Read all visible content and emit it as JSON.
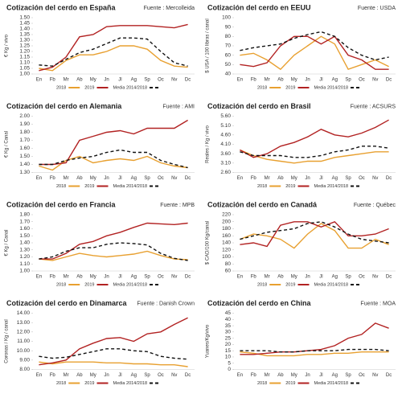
{
  "chart_data": [
    {
      "type": "line",
      "title": "Cotización del cerdo en España",
      "source": "Fuente : Mercolleida",
      "ylabel": "€ Kg / vivo",
      "categories": [
        "En",
        "Fb",
        "Mr",
        "Ab",
        "My",
        "Jn",
        "Jl",
        "Ag",
        "Sp",
        "Oc",
        "Nv",
        "Dc"
      ],
      "ylim": [
        1.0,
        1.5
      ],
      "yticks": [
        {
          "value": 1.0,
          "label": "1.00"
        },
        {
          "value": 1.05,
          "label": "1.05"
        },
        {
          "value": 1.1,
          "label": "1.10"
        },
        {
          "value": 1.15,
          "label": "1.15"
        },
        {
          "value": 1.2,
          "label": "1.20"
        },
        {
          "value": 1.25,
          "label": "1.25"
        },
        {
          "value": 1.3,
          "label": "1.30"
        },
        {
          "value": 1.35,
          "label": "1.35"
        },
        {
          "value": 1.4,
          "label": "1.40"
        },
        {
          "value": 1.45,
          "label": "1.45"
        },
        {
          "value": 1.5,
          "label": "1.50"
        }
      ],
      "series": [
        {
          "name": "2018",
          "color": "#e8a030",
          "values": [
            1.05,
            1.03,
            1.12,
            1.17,
            1.17,
            1.2,
            1.25,
            1.25,
            1.22,
            1.12,
            1.07,
            1.06
          ]
        },
        {
          "name": "2019",
          "color": "#b22222",
          "values": [
            1.03,
            1.06,
            1.15,
            1.33,
            1.35,
            1.42,
            1.43,
            1.43,
            1.43,
            1.42,
            1.41,
            1.44
          ]
        },
        {
          "name": "Media 2014/2018",
          "color": "#111111",
          "dashed": true,
          "values": [
            1.08,
            1.07,
            1.13,
            1.19,
            1.22,
            1.27,
            1.32,
            1.32,
            1.31,
            1.2,
            1.1,
            1.07
          ]
        }
      ]
    },
    {
      "type": "line",
      "title": "Cotización del cerdo en EEUU",
      "source": "Fuente : USDA",
      "ylabel": "$ USA / 100 libras / canal",
      "categories": [
        "En",
        "Fb",
        "Mr",
        "Ab",
        "My",
        "Jn",
        "Jl",
        "Ag",
        "Sp",
        "Oc",
        "Nv",
        "Dc"
      ],
      "ylim": [
        40,
        100
      ],
      "yticks": [
        40,
        50,
        60,
        70,
        80,
        90,
        100
      ],
      "series": [
        {
          "name": "2018",
          "color": "#e8a030",
          "values": [
            60,
            62,
            55,
            45,
            60,
            70,
            80,
            72,
            45,
            50,
            55,
            48
          ]
        },
        {
          "name": "2019",
          "color": "#b22222",
          "values": [
            50,
            48,
            52,
            70,
            80,
            80,
            72,
            80,
            60,
            55,
            45,
            45
          ]
        },
        {
          "name": "Media 2014/2018",
          "color": "#111111",
          "dashed": true,
          "values": [
            65,
            68,
            70,
            72,
            78,
            82,
            85,
            80,
            68,
            60,
            55,
            58
          ]
        }
      ]
    },
    {
      "type": "line",
      "title": "Cotización del cerdo en Alemania",
      "source": "Fuente : AMI",
      "ylabel": "€ Kg / Canal",
      "categories": [
        "En",
        "Fb",
        "Mr",
        "Ab",
        "My",
        "Jn",
        "Jl",
        "Ag",
        "Sp",
        "Oc",
        "Nv",
        "Dc"
      ],
      "ylim": [
        1.3,
        2.0
      ],
      "yticks": [
        {
          "value": 1.3,
          "label": "1.30"
        },
        {
          "value": 1.4,
          "label": "1.40"
        },
        {
          "value": 1.5,
          "label": "1.50"
        },
        {
          "value": 1.6,
          "label": "1.60"
        },
        {
          "value": 1.7,
          "label": "1.70"
        },
        {
          "value": 1.8,
          "label": "1.80"
        },
        {
          "value": 1.9,
          "label": "1.90"
        },
        {
          "value": 2.0,
          "label": "2.00"
        }
      ],
      "series": [
        {
          "name": "2018",
          "color": "#e8a030",
          "values": [
            1.38,
            1.33,
            1.45,
            1.5,
            1.42,
            1.45,
            1.47,
            1.45,
            1.5,
            1.42,
            1.38,
            1.36
          ]
        },
        {
          "name": "2019",
          "color": "#b22222",
          "values": [
            1.4,
            1.4,
            1.42,
            1.7,
            1.75,
            1.8,
            1.82,
            1.78,
            1.85,
            1.85,
            1.85,
            1.95
          ]
        },
        {
          "name": "Media 2014/2018",
          "color": "#111111",
          "dashed": true,
          "values": [
            1.4,
            1.4,
            1.45,
            1.48,
            1.5,
            1.55,
            1.58,
            1.55,
            1.55,
            1.45,
            1.4,
            1.36
          ]
        }
      ]
    },
    {
      "type": "line",
      "title": "Cotización del cerdo en Brasil",
      "source": "Fuente : ACSURS",
      "ylabel": "Reales / Kg / vivo",
      "categories": [
        "En",
        "Fb",
        "Mr",
        "Ab",
        "My",
        "Jn",
        "Jl",
        "Ag",
        "Sp",
        "Oc",
        "Nv",
        "Dc"
      ],
      "ylim": [
        2.6,
        5.6
      ],
      "yticks": [
        {
          "value": 2.6,
          "label": "2.60"
        },
        {
          "value": 3.1,
          "label": "3.10"
        },
        {
          "value": 3.6,
          "label": "3.60"
        },
        {
          "value": 4.1,
          "label": "4.10"
        },
        {
          "value": 4.6,
          "label": "4.60"
        },
        {
          "value": 5.1,
          "label": "5.10"
        },
        {
          "value": 5.6,
          "label": "5.60"
        }
      ],
      "series": [
        {
          "name": "2018",
          "color": "#e8a030",
          "values": [
            3.8,
            3.5,
            3.3,
            3.2,
            3.1,
            3.2,
            3.2,
            3.4,
            3.5,
            3.6,
            3.7,
            3.7
          ]
        },
        {
          "name": "2019",
          "color": "#b22222",
          "values": [
            3.8,
            3.4,
            3.6,
            4.0,
            4.2,
            4.5,
            4.9,
            4.6,
            4.5,
            4.7,
            5.0,
            5.4
          ]
        },
        {
          "name": "Media 2014/2018",
          "color": "#111111",
          "dashed": true,
          "values": [
            3.7,
            3.5,
            3.5,
            3.5,
            3.4,
            3.4,
            3.5,
            3.7,
            3.8,
            4.0,
            4.0,
            3.9
          ]
        }
      ]
    },
    {
      "type": "line",
      "title": "Cotización del cerdo en Francia",
      "source": "Fuente : MPB",
      "ylabel": "€ Kg / Canal",
      "categories": [
        "En",
        "Fb",
        "Mr",
        "Ab",
        "My",
        "Jn",
        "Jl",
        "Ag",
        "Sp",
        "Oc",
        "Nv",
        "Dc"
      ],
      "ylim": [
        1.0,
        1.8
      ],
      "yticks": [
        {
          "value": 1.0,
          "label": "1.00"
        },
        {
          "value": 1.1,
          "label": "1.10"
        },
        {
          "value": 1.2,
          "label": "1.20"
        },
        {
          "value": 1.3,
          "label": "1.30"
        },
        {
          "value": 1.4,
          "label": "1.40"
        },
        {
          "value": 1.5,
          "label": "1.50"
        },
        {
          "value": 1.6,
          "label": "1.60"
        },
        {
          "value": 1.7,
          "label": "1.70"
        },
        {
          "value": 1.8,
          "label": "1.80"
        }
      ],
      "series": [
        {
          "name": "2018",
          "color": "#e8a030",
          "values": [
            1.17,
            1.15,
            1.2,
            1.25,
            1.22,
            1.2,
            1.22,
            1.24,
            1.28,
            1.22,
            1.17,
            1.16
          ]
        },
        {
          "name": "2019",
          "color": "#b22222",
          "values": [
            1.17,
            1.17,
            1.25,
            1.38,
            1.42,
            1.5,
            1.55,
            1.62,
            1.68,
            1.67,
            1.66,
            1.68
          ]
        },
        {
          "name": "Media 2014/2018",
          "color": "#111111",
          "dashed": true,
          "values": [
            1.17,
            1.2,
            1.28,
            1.33,
            1.33,
            1.38,
            1.4,
            1.39,
            1.37,
            1.25,
            1.18,
            1.15
          ]
        }
      ]
    },
    {
      "type": "line",
      "title": "Cotización del cerdo en Canadá",
      "source": "Fuente : Québec",
      "ylabel": "$ CAD/100 Kg/canal",
      "categories": [
        "En",
        "Fb",
        "Mr",
        "Ab",
        "My",
        "Jn",
        "Jl",
        "Ag",
        "Sp",
        "Oc",
        "Nv",
        "Dc"
      ],
      "ylim": [
        60,
        220
      ],
      "yticks": [
        60,
        80,
        100,
        120,
        140,
        160,
        180,
        200,
        220
      ],
      "series": [
        {
          "name": "2018",
          "color": "#e8a030",
          "values": [
            150,
            165,
            160,
            150,
            125,
            165,
            195,
            175,
            125,
            125,
            150,
            135
          ]
        },
        {
          "name": "2019",
          "color": "#b22222",
          "values": [
            135,
            140,
            130,
            190,
            200,
            200,
            185,
            200,
            160,
            160,
            165,
            180
          ]
        },
        {
          "name": "Media 2014/2018",
          "color": "#111111",
          "dashed": true,
          "values": [
            150,
            160,
            170,
            175,
            180,
            195,
            200,
            185,
            165,
            150,
            145,
            140
          ]
        }
      ]
    },
    {
      "type": "line",
      "title": "Cotización del cerdo en Dinamarca",
      "source": "Fuente : Danish Crown",
      "ylabel": "Coronas / Kg / canal",
      "categories": [
        "En",
        "Fb",
        "Mr",
        "Ab",
        "My",
        "Jn",
        "Jl",
        "Ag",
        "Sp",
        "Oc",
        "Nv",
        "Dc"
      ],
      "ylim": [
        8,
        14
      ],
      "yticks": [
        {
          "value": 8,
          "label": "8.00"
        },
        {
          "value": 9,
          "label": "9.00"
        },
        {
          "value": 10,
          "label": "10.00"
        },
        {
          "value": 11,
          "label": "11.00"
        },
        {
          "value": 12,
          "label": "12.00"
        },
        {
          "value": 13,
          "label": "13.00"
        },
        {
          "value": 14,
          "label": "14.00"
        }
      ],
      "series": [
        {
          "name": "2018",
          "color": "#e8a030",
          "values": [
            8.8,
            8.6,
            8.8,
            8.8,
            8.8,
            8.7,
            8.7,
            8.6,
            8.6,
            8.5,
            8.5,
            8.3
          ]
        },
        {
          "name": "2019",
          "color": "#b22222",
          "values": [
            8.5,
            8.7,
            9.0,
            10.2,
            10.8,
            11.3,
            11.4,
            11.0,
            11.8,
            12.0,
            12.8,
            13.5
          ]
        },
        {
          "name": "Media 2014/2018",
          "color": "#111111",
          "dashed": true,
          "values": [
            9.4,
            9.2,
            9.3,
            9.6,
            9.9,
            10.2,
            10.2,
            10.0,
            9.9,
            9.4,
            9.2,
            9.1
          ]
        }
      ]
    },
    {
      "type": "line",
      "title": "Cotización del cerdo en China",
      "source": "Fuente : MOA",
      "ylabel": "Yuanes/Kg/vivo",
      "categories": [
        "En",
        "Fb",
        "Mr",
        "Ab",
        "My",
        "Jn",
        "Jl",
        "Ag",
        "Sp",
        "Oc",
        "Nv",
        "Dc"
      ],
      "ylim": [
        0,
        45
      ],
      "yticks": [
        0,
        5,
        10,
        15,
        20,
        25,
        30,
        35,
        40,
        45
      ],
      "series": [
        {
          "name": "2018",
          "color": "#e8a030",
          "values": [
            14,
            13,
            11,
            11,
            11,
            12,
            12,
            13,
            13,
            14,
            14,
            14
          ]
        },
        {
          "name": "2019",
          "color": "#b22222",
          "values": [
            12,
            12,
            13,
            14,
            14,
            15,
            16,
            19,
            25,
            28,
            37,
            33
          ]
        },
        {
          "name": "Media 2014/2018",
          "color": "#111111",
          "dashed": true,
          "values": [
            15,
            15,
            15,
            14,
            14,
            15,
            15,
            15,
            16,
            16,
            16,
            15
          ]
        }
      ]
    }
  ]
}
